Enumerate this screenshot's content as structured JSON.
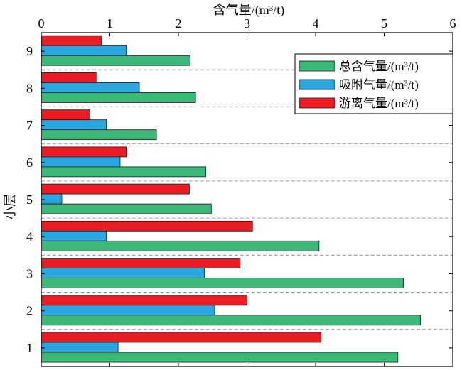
{
  "chart_data": {
    "type": "bar",
    "orientation": "horizontal",
    "xlabel": "含气量/(m³/t)",
    "ylabel": "小层",
    "xlim": [
      0,
      6
    ],
    "x_ticks": [
      0,
      1,
      2,
      3,
      4,
      5,
      6
    ],
    "x_axis_position": "top",
    "categories": [
      "1",
      "2",
      "3",
      "4",
      "5",
      "6",
      "7",
      "8",
      "9"
    ],
    "grid": "dashed horizontal separators between categories",
    "legend_position": "top-right",
    "series": [
      {
        "name": "总含气量/(m³/t)",
        "color": "#3cb878",
        "values": [
          5.2,
          5.53,
          5.28,
          4.05,
          2.48,
          2.4,
          1.68,
          2.25,
          2.17
        ]
      },
      {
        "name": "吸附气量/(m³/t)",
        "color": "#2aa6e0",
        "values": [
          1.12,
          2.53,
          2.38,
          0.95,
          0.3,
          1.15,
          0.95,
          1.43,
          1.24
        ]
      },
      {
        "name": "游离气量/(m³/t)",
        "color": "#ec1c24",
        "values": [
          4.08,
          3.0,
          2.9,
          3.08,
          2.16,
          1.24,
          0.71,
          0.8,
          0.88
        ]
      }
    ]
  }
}
